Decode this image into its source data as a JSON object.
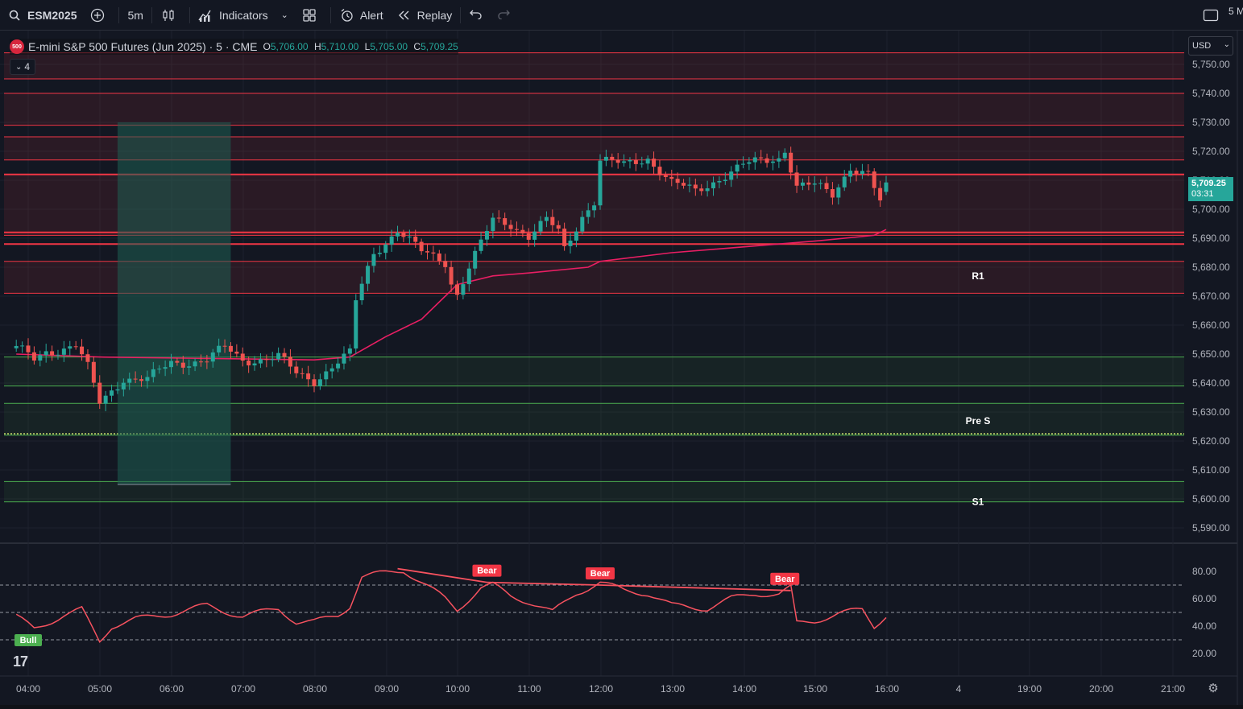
{
  "toolbar": {
    "symbol": "ESM2025",
    "interval": "5m",
    "indicators_label": "Indicators",
    "alert_label": "Alert",
    "replay_label": "Replay",
    "corner_text": "5 M"
  },
  "legend": {
    "badge": "500",
    "title": "E-mini S&P 500 Futures (Jun 2025) · 5 · CME",
    "o_label": "O",
    "o_value": "5,706.00",
    "h_label": "H",
    "h_value": "5,710.00",
    "l_label": "L",
    "l_value": "5,705.00",
    "c_label": "C",
    "c_value": "5,709.25",
    "collapse_count": "4"
  },
  "price_axis": {
    "currency": "USD",
    "current_price": "5,709.25",
    "countdown": "03:31",
    "ticks": [
      "5,750.00",
      "5,740.00",
      "5,730.00",
      "5,720.00",
      "5,710.00",
      "5,700.00",
      "5,690.00",
      "5,680.00",
      "5,670.00",
      "5,660.00",
      "5,650.00",
      "5,640.00",
      "5,630.00",
      "5,620.00",
      "5,610.00",
      "5,600.00",
      "5,590.00"
    ]
  },
  "oscillator_axis": {
    "ticks": [
      "80.00",
      "60.00",
      "40.00",
      "20.00"
    ]
  },
  "time_axis": {
    "ticks": [
      "04:00",
      "05:00",
      "06:00",
      "07:00",
      "08:00",
      "09:00",
      "10:00",
      "11:00",
      "12:00",
      "13:00",
      "14:00",
      "15:00",
      "16:00",
      "4",
      "19:00",
      "20:00",
      "21:00"
    ]
  },
  "level_labels": {
    "r1": "R1",
    "pre_s": "Pre S",
    "s1": "S1"
  },
  "divergence_labels": {
    "bull": "Bull",
    "bear": "Bear"
  },
  "colors": {
    "up": "#26a69a",
    "down": "#ef5350",
    "vwap": "#e91e63",
    "resistance_zone": "#f23645",
    "support_zone": "#4caf50",
    "session_highlight": "#1e5e52",
    "rsi": "#f7525f",
    "background": "#131722"
  },
  "chart_data": [
    {
      "type": "candlestick",
      "title": "E-mini S&P 500 Futures (Jun 2025) · 5 · CME",
      "interval": "5m",
      "ylim": [
        5586,
        5756
      ],
      "x_ticks": [
        "04:00",
        "05:00",
        "06:00",
        "07:00",
        "08:00",
        "09:00",
        "10:00",
        "11:00",
        "12:00",
        "13:00",
        "14:00",
        "15:00",
        "16:00",
        "4",
        "19:00",
        "20:00",
        "21:00"
      ],
      "last": {
        "open": 5706.0,
        "high": 5710.0,
        "low": 5705.0,
        "close": 5709.25
      },
      "anchors": [
        {
          "t": "03:50",
          "p": 5652
        },
        {
          "t": "04:05",
          "p": 5648
        },
        {
          "t": "04:15",
          "p": 5651
        },
        {
          "t": "04:40",
          "p": 5653
        },
        {
          "t": "04:50",
          "p": 5645
        },
        {
          "t": "05:00",
          "p": 5633
        },
        {
          "t": "05:20",
          "p": 5642
        },
        {
          "t": "05:40",
          "p": 5641
        },
        {
          "t": "06:00",
          "p": 5647
        },
        {
          "t": "06:30",
          "p": 5648
        },
        {
          "t": "06:45",
          "p": 5652
        },
        {
          "t": "07:00",
          "p": 5648
        },
        {
          "t": "07:30",
          "p": 5649
        },
        {
          "t": "07:45",
          "p": 5643
        },
        {
          "t": "08:00",
          "p": 5641
        },
        {
          "t": "08:15",
          "p": 5646
        },
        {
          "t": "08:30",
          "p": 5650
        },
        {
          "t": "08:35",
          "p": 5668
        },
        {
          "t": "08:50",
          "p": 5685
        },
        {
          "t": "09:10",
          "p": 5693
        },
        {
          "t": "09:30",
          "p": 5685
        },
        {
          "t": "09:50",
          "p": 5682
        },
        {
          "t": "09:55",
          "p": 5675
        },
        {
          "t": "10:00",
          "p": 5671
        },
        {
          "t": "10:10",
          "p": 5680
        },
        {
          "t": "10:30",
          "p": 5696
        },
        {
          "t": "10:45",
          "p": 5695
        },
        {
          "t": "11:00",
          "p": 5691
        },
        {
          "t": "11:15",
          "p": 5696
        },
        {
          "t": "11:25",
          "p": 5692
        },
        {
          "t": "11:30",
          "p": 5686
        },
        {
          "t": "11:45",
          "p": 5698
        },
        {
          "t": "11:55",
          "p": 5703
        },
        {
          "t": "12:00",
          "p": 5717
        },
        {
          "t": "12:20",
          "p": 5715
        },
        {
          "t": "12:40",
          "p": 5718
        },
        {
          "t": "13:00",
          "p": 5709
        },
        {
          "t": "13:20",
          "p": 5706
        },
        {
          "t": "13:40",
          "p": 5711
        },
        {
          "t": "14:00",
          "p": 5715
        },
        {
          "t": "14:30",
          "p": 5718
        },
        {
          "t": "14:35",
          "p": 5721
        },
        {
          "t": "14:45",
          "p": 5708
        },
        {
          "t": "15:00",
          "p": 5708
        },
        {
          "t": "15:15",
          "p": 5705
        },
        {
          "t": "15:30",
          "p": 5715
        },
        {
          "t": "15:45",
          "p": 5712
        },
        {
          "t": "15:55",
          "p": 5702
        },
        {
          "t": "16:00",
          "p": 5709
        }
      ],
      "vwap": [
        {
          "t": "03:50",
          "p": 5650
        },
        {
          "t": "05:00",
          "p": 5649
        },
        {
          "t": "08:00",
          "p": 5648
        },
        {
          "t": "08:30",
          "p": 5649
        },
        {
          "t": "09:00",
          "p": 5656
        },
        {
          "t": "09:30",
          "p": 5662
        },
        {
          "t": "09:50",
          "p": 5670
        },
        {
          "t": "10:00",
          "p": 5674
        },
        {
          "t": "10:30",
          "p": 5677
        },
        {
          "t": "11:00",
          "p": 5678
        },
        {
          "t": "11:50",
          "p": 5680
        },
        {
          "t": "12:00",
          "p": 5682
        },
        {
          "t": "13:00",
          "p": 5685
        },
        {
          "t": "14:00",
          "p": 5687
        },
        {
          "t": "15:00",
          "p": 5689
        },
        {
          "t": "15:50",
          "p": 5691
        },
        {
          "t": "16:00",
          "p": 5693
        }
      ],
      "resistance_zones": [
        [
          5745,
          5754
        ],
        [
          5729,
          5740
        ],
        [
          5717,
          5725
        ],
        [
          5691,
          5712
        ],
        [
          5671,
          5682
        ]
      ],
      "support_zones": [
        [
          5639,
          5649
        ],
        [
          5622,
          5633
        ],
        [
          5599,
          5606
        ]
      ],
      "level_lines": [
        {
          "price": 5712,
          "style": "solid"
        },
        {
          "price": 5692,
          "style": "solid"
        },
        {
          "price": 5688,
          "style": "solid"
        },
        {
          "price": 5622.5,
          "style": "dotted"
        }
      ],
      "labels": [
        {
          "text": "R1",
          "price": 5677
        },
        {
          "text": "Pre S",
          "price": 5627
        },
        {
          "text": "S1",
          "price": 5599
        }
      ],
      "session_box": {
        "from": "05:15",
        "to": "06:50",
        "top": 5730,
        "bottom": 5605
      }
    },
    {
      "type": "line",
      "title": "",
      "ylim": [
        10,
        90
      ],
      "reference_lines": [
        70,
        50,
        30
      ],
      "y_ticks": [
        80,
        60,
        40,
        20
      ],
      "anchors": [
        {
          "t": "03:50",
          "v": 47
        },
        {
          "t": "04:05",
          "v": 38
        },
        {
          "t": "04:30",
          "v": 48
        },
        {
          "t": "04:45",
          "v": 52
        },
        {
          "t": "05:00",
          "v": 29
        },
        {
          "t": "05:10",
          "v": 40
        },
        {
          "t": "05:30",
          "v": 45
        },
        {
          "t": "06:00",
          "v": 49
        },
        {
          "t": "06:30",
          "v": 55
        },
        {
          "t": "07:00",
          "v": 47
        },
        {
          "t": "07:30",
          "v": 53
        },
        {
          "t": "07:45",
          "v": 43
        },
        {
          "t": "08:00",
          "v": 43
        },
        {
          "t": "08:20",
          "v": 48
        },
        {
          "t": "08:30",
          "v": 55
        },
        {
          "t": "08:40",
          "v": 76
        },
        {
          "t": "09:00",
          "v": 79
        },
        {
          "t": "09:15",
          "v": 81
        },
        {
          "t": "09:30",
          "v": 72
        },
        {
          "t": "09:50",
          "v": 60
        },
        {
          "t": "10:00",
          "v": 52
        },
        {
          "t": "10:20",
          "v": 68
        },
        {
          "t": "10:30",
          "v": 70
        },
        {
          "t": "10:45",
          "v": 62
        },
        {
          "t": "11:00",
          "v": 58
        },
        {
          "t": "11:20",
          "v": 50
        },
        {
          "t": "11:40",
          "v": 64
        },
        {
          "t": "12:00",
          "v": 72
        },
        {
          "t": "12:20",
          "v": 66
        },
        {
          "t": "12:40",
          "v": 64
        },
        {
          "t": "13:00",
          "v": 55
        },
        {
          "t": "13:30",
          "v": 53
        },
        {
          "t": "13:50",
          "v": 60
        },
        {
          "t": "14:10",
          "v": 64
        },
        {
          "t": "14:30",
          "v": 63
        },
        {
          "t": "14:40",
          "v": 68
        },
        {
          "t": "14:45",
          "v": 42
        },
        {
          "t": "15:00",
          "v": 44
        },
        {
          "t": "15:20",
          "v": 49
        },
        {
          "t": "15:40",
          "v": 52
        },
        {
          "t": "15:50",
          "v": 40
        },
        {
          "t": "16:00",
          "v": 48
        }
      ],
      "divergences": [
        {
          "label": "Bull",
          "t": "04:00",
          "v": 30
        },
        {
          "label": "Bear",
          "from": {
            "t": "09:10",
            "v": 82
          },
          "to": {
            "t": "10:25",
            "v": 72
          },
          "at": "10:25"
        },
        {
          "label": "Bear",
          "from": {
            "t": "10:25",
            "v": 72
          },
          "to": {
            "t": "12:00",
            "v": 70
          },
          "at": "12:00"
        },
        {
          "label": "Bear",
          "from": {
            "t": "12:00",
            "v": 70
          },
          "to": {
            "t": "14:40",
            "v": 66
          },
          "at": "14:35"
        }
      ]
    }
  ]
}
